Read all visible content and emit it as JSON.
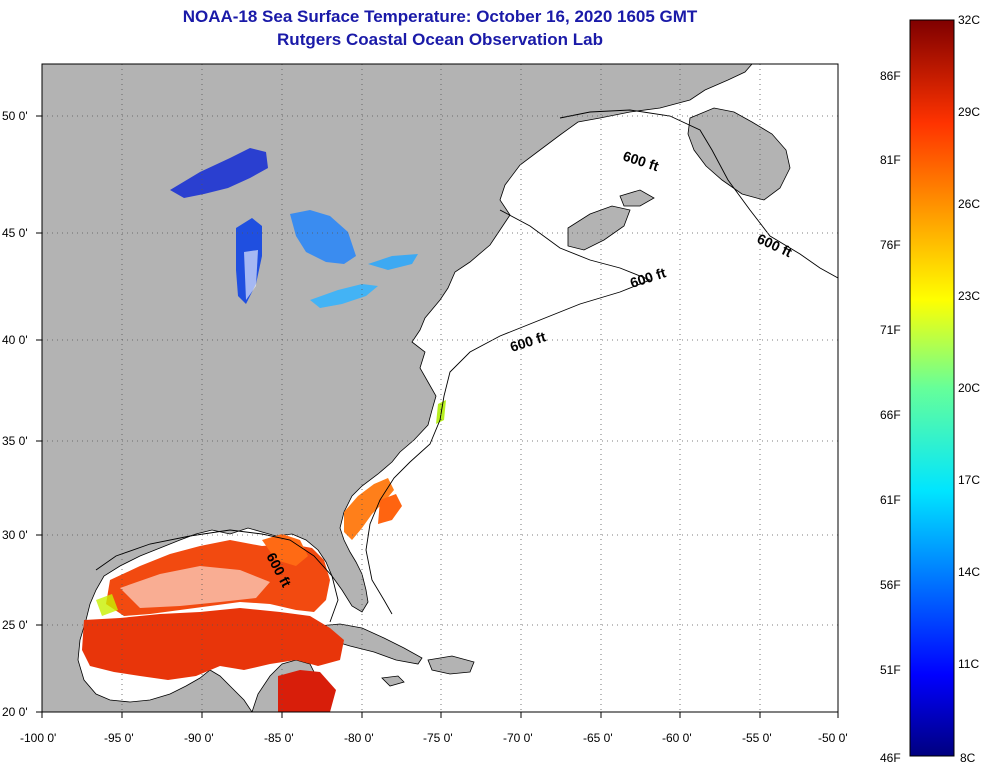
{
  "header": {
    "title": "NOAA-18 Sea Surface Temperature:  October 16, 2020 1605 GMT",
    "subtitle": "Rutgers Coastal Ocean Observation Lab"
  },
  "map": {
    "lon_ticks": [
      "-100 0'",
      "-95 0'",
      "-90 0'",
      "-85 0'",
      "-80 0'",
      "-75 0'",
      "-70 0'",
      "-65 0'",
      "-60 0'",
      "-55 0'",
      "-50 0'"
    ],
    "lat_ticks": [
      "50 0'",
      "45 0'",
      "40 0'",
      "35 0'",
      "30 0'",
      "25 0'",
      "20 0'"
    ],
    "isobath_label": "600 ft",
    "land_color": "#b3b3b3",
    "ocean_nodata_color": "#ffffff"
  },
  "colorbar": {
    "celsius_labels": [
      "32C",
      "29C",
      "26C",
      "23C",
      "20C",
      "17C",
      "14C",
      "11C",
      "8C"
    ],
    "fahrenheit_labels": [
      "86F",
      "81F",
      "76F",
      "71F",
      "66F",
      "61F",
      "56F",
      "51F",
      "46F"
    ]
  }
}
